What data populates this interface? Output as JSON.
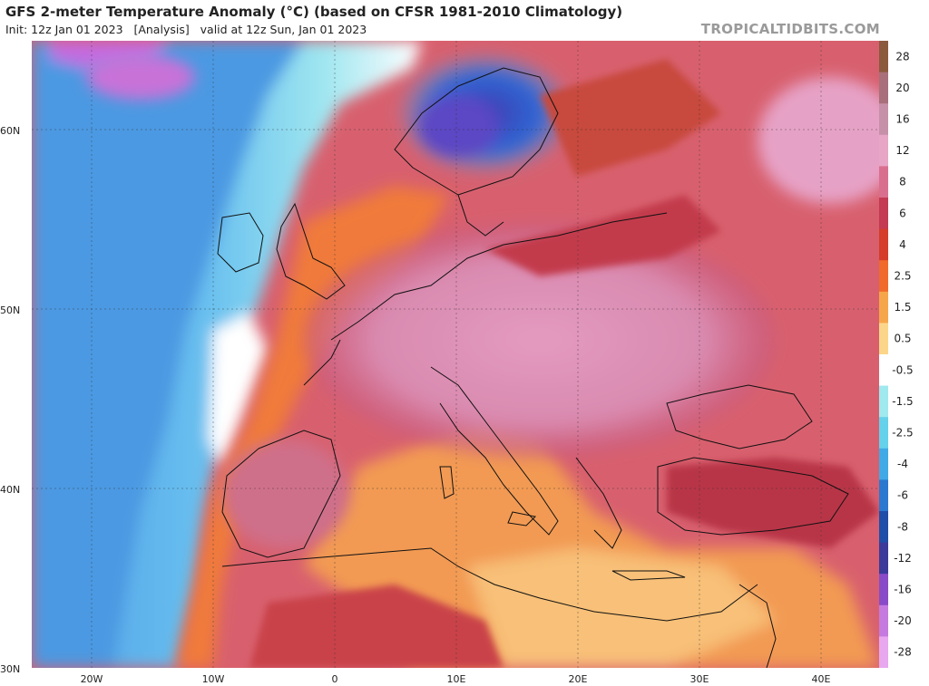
{
  "title": "GFS 2-meter Temperature Anomaly (°C) (based on CFSR 1981-2010 Climatology)",
  "subtitle": "Init: 12z Jan 01 2023   [Analysis]   valid at 12z Sun, Jan 01 2023",
  "watermark": "TROPICALTIDBITS.COM",
  "lat_labels": [
    "60N",
    "50N",
    "40N",
    "30N"
  ],
  "lon_labels": [
    "20W",
    "10W",
    "0",
    "10E",
    "20E",
    "30E",
    "40E"
  ],
  "colorbar": {
    "labels": [
      "28",
      "20",
      "16",
      "12",
      "8",
      "6",
      "4",
      "2.5",
      "1.5",
      "0.5",
      "-0.5",
      "-1.5",
      "-2.5",
      "-4",
      "-6",
      "-8",
      "-12",
      "-16",
      "-20",
      "-28"
    ],
    "colors": [
      "#8b5a3c",
      "#a8707a",
      "#c690a8",
      "#e7a6c6",
      "#d96f8f",
      "#c33a52",
      "#d53c2a",
      "#f06a2c",
      "#f6a64a",
      "#fbd68a",
      "#ffffff",
      "#9fe9ef",
      "#66d1ea",
      "#40a9e6",
      "#2b78d0",
      "#1f4ea8",
      "#3b3a9a",
      "#8a4bc8",
      "#c57ae0",
      "#e8a8ef"
    ]
  }
}
